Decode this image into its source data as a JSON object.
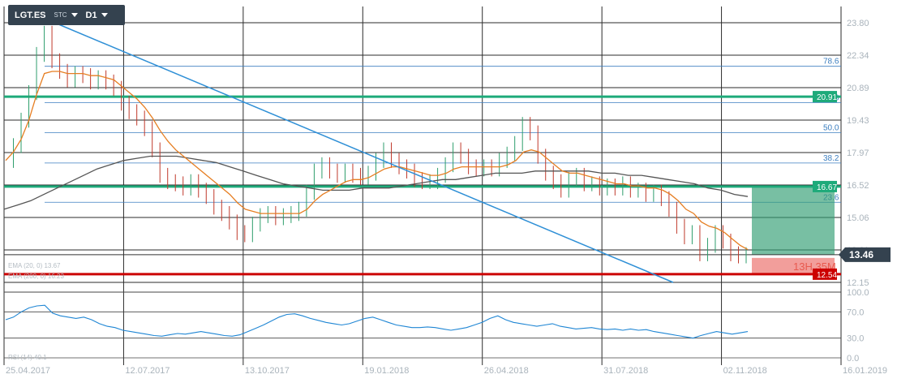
{
  "toolbar": {
    "symbol": "LGT.ES",
    "type_select": "STC",
    "timeframe_select": "D1"
  },
  "colors": {
    "grid": "#2b2b2b",
    "price_wick_up": "#2e9e6c",
    "price_wick_down": "#c0392b",
    "ema_fast": "#e67e22",
    "ema_slow": "#555555",
    "trendline": "#2e8fd6",
    "support_resistance": "#1eaa7a",
    "stop_line": "#cc0000",
    "rsi": "#1f86d4",
    "take_profit_zone": "#2f9d72",
    "stop_loss_zone": "#ee7d7a",
    "current_price": "#34424f"
  },
  "chart_data": [
    {
      "type": "line",
      "name": "price",
      "x_labels": [
        "25.04.2017",
        "12.07.2017",
        "13.10.2017",
        "19.01.2018",
        "26.04.2018",
        "31.07.2018",
        "02.11.2018",
        "16.01.2019"
      ],
      "y_ticks": [
        "23.80",
        "22.34",
        "20.89",
        "19.43",
        "17.97",
        "16.52",
        "15.06",
        "13.61",
        "12.15"
      ],
      "ylim": [
        12.0,
        24.7
      ],
      "log_scale": false,
      "grid": true,
      "price_close": [
        17.9,
        18.6,
        19.8,
        21.1,
        22.9,
        23.9,
        22.6,
        22.1,
        21.7,
        22.0,
        21.9,
        21.6,
        21.8,
        21.6,
        21.3,
        20.6,
        20.2,
        19.9,
        19.4,
        18.4,
        17.2,
        16.9,
        16.8,
        16.6,
        16.9,
        16.5,
        16.2,
        15.7,
        15.4,
        15.0,
        14.5,
        14.4,
        14.9,
        15.3,
        15.4,
        15.2,
        15.3,
        15.4,
        15.6,
        16.4,
        17.4,
        17.7,
        17.4,
        17.2,
        17.4,
        17.2,
        17.1,
        17.3,
        17.9,
        18.4,
        17.9,
        17.6,
        17.4,
        17.0,
        16.9,
        16.9,
        17.2,
        17.7,
        18.4,
        18.1,
        17.6,
        17.5,
        17.6,
        17.5,
        17.9,
        18.2,
        18.7,
        19.6,
        19.2,
        18.1,
        17.3,
        16.9,
        16.5,
        17.0,
        17.2,
        16.8,
        16.8,
        16.6,
        16.7,
        16.6,
        16.8,
        16.5,
        16.5,
        16.3,
        16.4,
        16.1,
        15.6,
        14.8,
        14.3,
        14.5,
        13.5,
        13.9,
        14.5,
        14.1,
        13.5,
        13.4,
        13.46
      ],
      "ema_fast": [
        17.9,
        18.3,
        18.9,
        19.8,
        21.0,
        22.0,
        22.1,
        22.1,
        22.0,
        22.0,
        22.0,
        21.9,
        21.9,
        21.8,
        21.7,
        21.4,
        21.1,
        20.8,
        20.4,
        19.9,
        19.3,
        18.8,
        18.4,
        18.1,
        17.8,
        17.5,
        17.2,
        16.9,
        16.6,
        16.3,
        15.9,
        15.6,
        15.5,
        15.4,
        15.4,
        15.4,
        15.4,
        15.4,
        15.4,
        15.6,
        16.0,
        16.3,
        16.5,
        16.7,
        16.9,
        17.0,
        17.0,
        17.1,
        17.3,
        17.5,
        17.6,
        17.6,
        17.5,
        17.4,
        17.3,
        17.2,
        17.2,
        17.3,
        17.5,
        17.6,
        17.6,
        17.6,
        17.6,
        17.6,
        17.6,
        17.7,
        17.9,
        18.3,
        18.4,
        18.3,
        18.0,
        17.7,
        17.4,
        17.3,
        17.3,
        17.2,
        17.1,
        17.0,
        16.9,
        16.8,
        16.8,
        16.7,
        16.7,
        16.6,
        16.6,
        16.5,
        16.3,
        16.0,
        15.6,
        15.4,
        15.0,
        14.8,
        14.7,
        14.5,
        14.2,
        13.9,
        13.7
      ],
      "ema_slow": [
        15.6,
        15.8,
        16.0,
        16.3,
        16.6,
        16.9,
        17.2,
        17.5,
        17.7,
        17.9,
        18.0,
        18.1,
        18.1,
        18.1,
        18.0,
        17.9,
        17.8,
        17.6,
        17.4,
        17.2,
        17.0,
        16.8,
        16.7,
        16.6,
        16.5,
        16.5,
        16.5,
        16.6,
        16.6,
        16.6,
        16.7,
        16.8,
        16.9,
        17.0,
        17.0,
        17.1,
        17.2,
        17.3,
        17.3,
        17.3,
        17.4,
        17.4,
        17.4,
        17.4,
        17.4,
        17.3,
        17.3,
        17.2,
        17.2,
        17.1,
        17.0,
        16.9,
        16.8,
        16.6,
        16.5,
        16.3,
        16.2
      ],
      "rsi": [
        58,
        62,
        70,
        76,
        79,
        80,
        68,
        64,
        62,
        60,
        62,
        58,
        52,
        48,
        46,
        42,
        40,
        38,
        36,
        34,
        33,
        35,
        37,
        36,
        38,
        40,
        38,
        36,
        34,
        33,
        35,
        40,
        45,
        50,
        56,
        62,
        66,
        67,
        64,
        60,
        57,
        54,
        52,
        50,
        52,
        56,
        60,
        62,
        58,
        54,
        50,
        48,
        46,
        46,
        47,
        46,
        44,
        42,
        44,
        46,
        50,
        54,
        60,
        64,
        58,
        54,
        52,
        50,
        48,
        50,
        52,
        48,
        46,
        44,
        45,
        46,
        44,
        43,
        44,
        42,
        44,
        42,
        43,
        40,
        38,
        36,
        34,
        32,
        30,
        34,
        37,
        40,
        38,
        36,
        38,
        40
      ],
      "rsi_ylim": [
        0,
        100
      ],
      "rsi_ticks": [
        "100.0",
        "70.0",
        "30.0",
        "0.0"
      ]
    }
  ],
  "fib_levels": [
    {
      "label": "78.6",
      "value": 22.34
    },
    {
      "label": "61.8",
      "value": 20.62
    },
    {
      "label": "50.0",
      "value": 19.21
    },
    {
      "label": "38.2",
      "value": 17.78
    },
    {
      "label": "23.6",
      "value": 15.93
    }
  ],
  "levels": {
    "resistance": {
      "label": "20.91",
      "value": 20.91
    },
    "support": {
      "label": "16.67",
      "value": 16.67
    },
    "stop": {
      "label": "12.54",
      "value": 12.54
    },
    "current": {
      "label": "13.46",
      "value": 13.46
    }
  },
  "annotations": {
    "target_text": "13H 35M",
    "ema_legend_1": "EMA (20, 0) 13.67",
    "ema_legend_2": "EMA (200, 0) 16.23",
    "rsi_legend": "RSI (14) 40.1"
  }
}
